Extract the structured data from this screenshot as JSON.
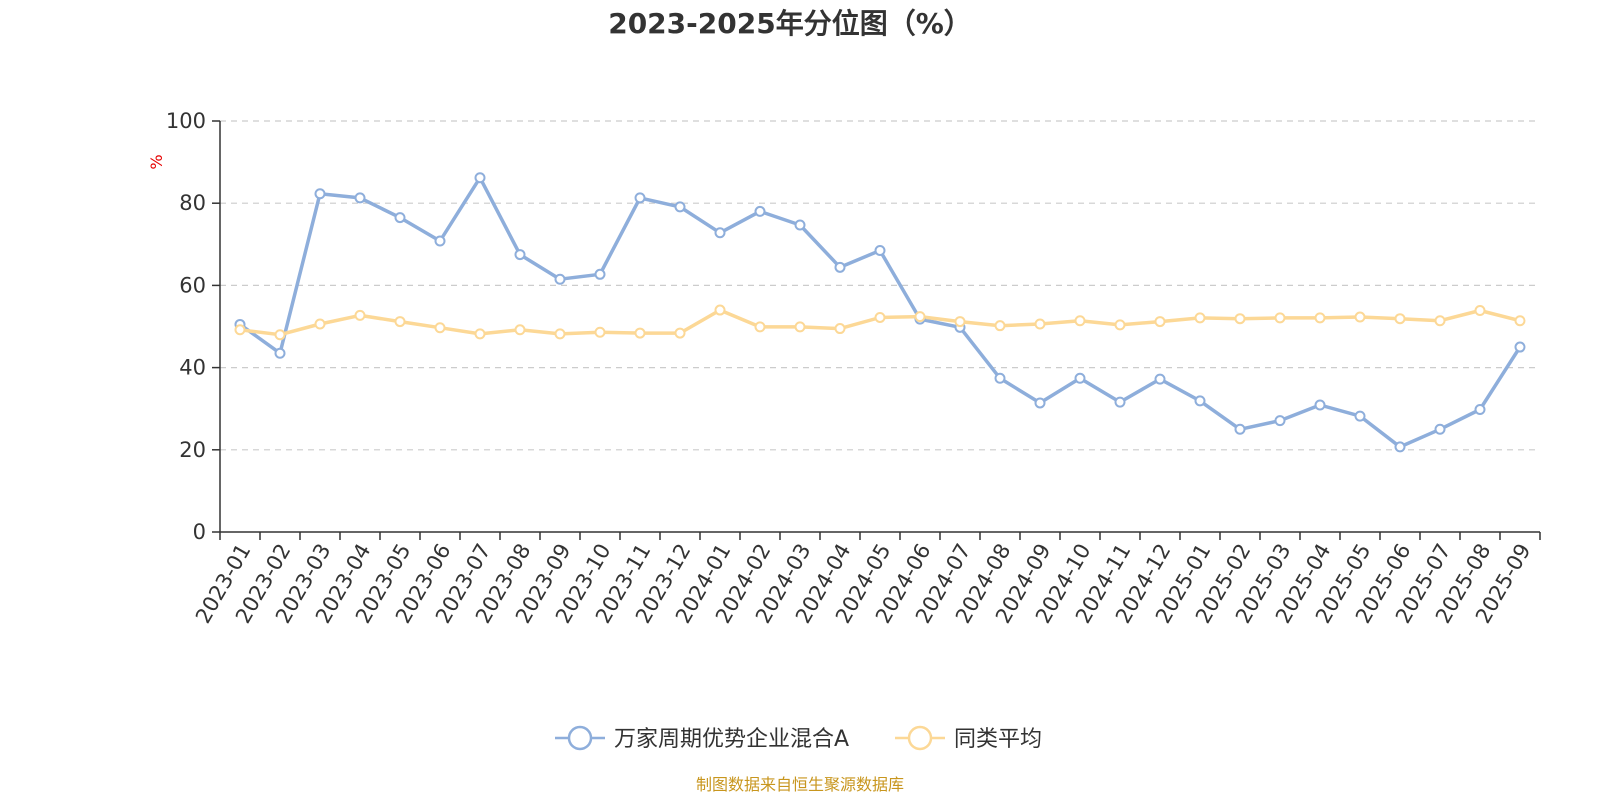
{
  "chart_data": {
    "type": "line",
    "title": "2023-2025年分位图（%）",
    "ylabel": "%",
    "ylim": [
      0,
      100
    ],
    "yticks": [
      "0",
      "20",
      "40",
      "60",
      "80",
      "100"
    ],
    "grid": true,
    "legend_position": "bottom",
    "categories": [
      "2023-01",
      "2023-02",
      "2023-03",
      "2023-04",
      "2023-05",
      "2023-06",
      "2023-07",
      "2023-08",
      "2023-09",
      "2023-10",
      "2023-11",
      "2023-12",
      "2024-01",
      "2024-02",
      "2024-03",
      "2024-04",
      "2024-05",
      "2024-06",
      "2024-07",
      "2024-08",
      "2024-09",
      "2024-10",
      "2024-11",
      "2024-12",
      "2025-01",
      "2025-02",
      "2025-03",
      "2025-04",
      "2025-05",
      "2025-06",
      "2025-07",
      "2025-08",
      "2025-09"
    ],
    "series": [
      {
        "name": "万家周期优势企业混合A",
        "color": "#8eaedb",
        "values": [
          50.5,
          43.5,
          82.3,
          81.3,
          76.5,
          70.8,
          86.2,
          67.5,
          61.5,
          62.7,
          81.3,
          79.1,
          72.8,
          78.0,
          74.7,
          64.4,
          68.5,
          51.8,
          49.8,
          37.4,
          31.4,
          37.4,
          31.6,
          37.2,
          31.9,
          25.0,
          27.1,
          30.9,
          28.2,
          20.7,
          25.0,
          29.8,
          45.0
        ]
      },
      {
        "name": "同类平均",
        "color": "#fcd896",
        "values": [
          49.2,
          48.0,
          50.6,
          52.7,
          51.2,
          49.7,
          48.2,
          49.2,
          48.2,
          48.6,
          48.4,
          48.4,
          54.0,
          49.9,
          49.9,
          49.5,
          52.2,
          52.4,
          51.2,
          50.2,
          50.6,
          51.4,
          50.4,
          51.2,
          52.1,
          51.9,
          52.1,
          52.1,
          52.3,
          51.9,
          51.4,
          53.9,
          51.4
        ]
      }
    ]
  },
  "source": "制图数据来自恒生聚源数据库"
}
